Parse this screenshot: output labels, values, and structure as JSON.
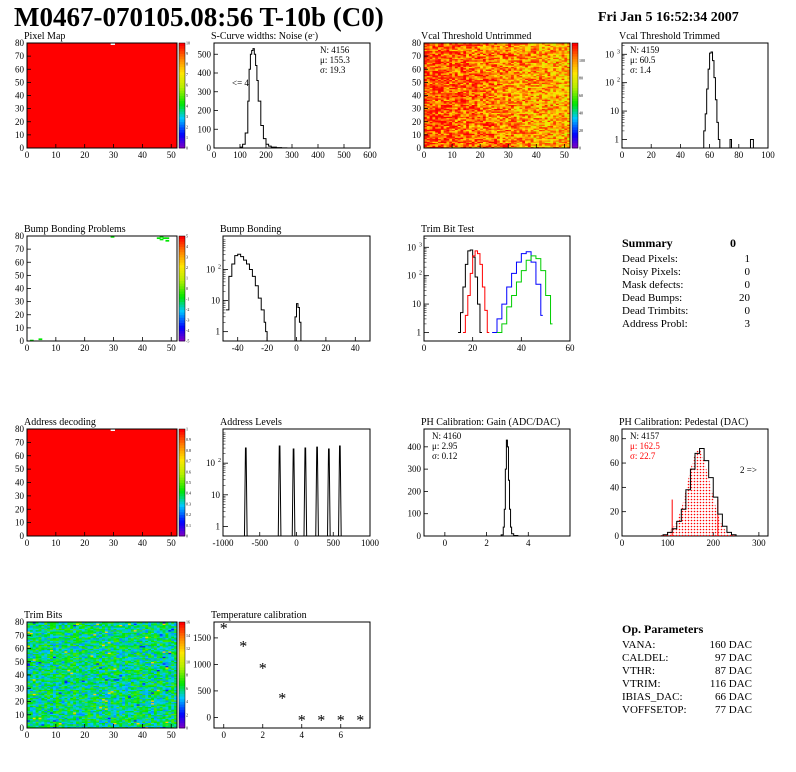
{
  "header": {
    "title": "M0467-070105.08:56 T-10b (C0)",
    "date": "Fri Jan  5 16:52:34 2007"
  },
  "colors": {
    "red": "#ff0000",
    "green": "#00cc00",
    "blue": "#0000ff",
    "black": "#000000"
  },
  "chart_data": [
    {
      "id": "pixel-map",
      "type": "heatmap",
      "title": "Pixel Map",
      "xlim": [
        0,
        52
      ],
      "ylim": [
        0,
        80
      ],
      "xticks": [
        0,
        10,
        20,
        30,
        40,
        50
      ],
      "yticks": [
        0,
        10,
        20,
        30,
        40,
        50,
        60,
        70,
        80
      ],
      "zlim": [
        0,
        10
      ],
      "zticks": [
        0,
        1,
        2,
        3,
        4,
        5,
        6,
        7,
        8,
        9,
        10
      ],
      "fill": "uniform-max",
      "dead_pixels": [
        [
          29,
          79
        ]
      ]
    },
    {
      "id": "scurve-widths",
      "type": "line",
      "title": "S-Curve widths: Noise (e",
      "title_sup": "-",
      "title_end": ")",
      "xlim": [
        0,
        600
      ],
      "ylim": [
        0,
        560
      ],
      "xticks": [
        0,
        100,
        200,
        300,
        400,
        500,
        600
      ],
      "yticks": [
        0,
        100,
        200,
        300,
        400,
        500
      ],
      "stats": {
        "N": "4156",
        "mu": "155.3",
        "sigma": "19.3"
      },
      "annotation": "<= 4",
      "x": [
        80,
        100,
        110,
        120,
        130,
        135,
        140,
        145,
        150,
        155,
        160,
        165,
        170,
        180,
        190,
        200,
        210,
        220,
        240,
        260,
        280,
        290
      ],
      "values": [
        0,
        5,
        20,
        80,
        250,
        420,
        500,
        520,
        530,
        500,
        440,
        360,
        250,
        120,
        50,
        20,
        10,
        5,
        2,
        1,
        0,
        0
      ]
    },
    {
      "id": "vcal-untrimmed",
      "type": "heatmap",
      "title": "Vcal Threshold Untrimmed",
      "xlim": [
        0,
        52
      ],
      "ylim": [
        0,
        80
      ],
      "xticks": [
        0,
        10,
        20,
        30,
        40,
        50
      ],
      "yticks": [
        0,
        10,
        20,
        30,
        40,
        50,
        60,
        70,
        80
      ],
      "zlim": [
        0,
        120
      ],
      "zticks": [
        0,
        20,
        40,
        60,
        80,
        100
      ],
      "fill": "noisy-orange"
    },
    {
      "id": "vcal-trimmed",
      "type": "line",
      "title": "Vcal Threshold Trimmed",
      "scale": "log",
      "xlim": [
        0,
        100
      ],
      "ylim": [
        0.5,
        2500
      ],
      "xticks": [
        0,
        20,
        40,
        60,
        80,
        100
      ],
      "ylog_ticks": [
        1,
        10,
        100,
        1000
      ],
      "stats": {
        "N": "4159",
        "mu": "60.5",
        "sigma": "1.4"
      },
      "x": [
        55,
        56,
        57,
        58,
        59,
        60,
        61,
        62,
        63,
        64,
        65,
        66,
        67,
        74,
        75,
        88,
        89,
        90
      ],
      "values": [
        0.5,
        2,
        8,
        60,
        300,
        1100,
        1200,
        600,
        150,
        25,
        4,
        1,
        0.5,
        1,
        0.5,
        1,
        1,
        0.5
      ]
    },
    {
      "id": "bump-problems",
      "type": "heatmap",
      "title": "Bump Bonding Problems",
      "xlim": [
        0,
        52
      ],
      "ylim": [
        0,
        80
      ],
      "xticks": [
        0,
        10,
        20,
        30,
        40,
        50
      ],
      "yticks": [
        0,
        10,
        20,
        30,
        40,
        50,
        60,
        70,
        80
      ],
      "zlim": [
        -5,
        5
      ],
      "zticks": [
        -5,
        -4,
        -3,
        -2,
        -1,
        0,
        1,
        2,
        3,
        4,
        5
      ],
      "fill": "sparse",
      "points": [
        [
          45,
          78
        ],
        [
          46,
          77
        ],
        [
          47,
          78
        ],
        [
          48,
          76
        ],
        [
          48,
          78
        ],
        [
          46,
          79
        ],
        [
          29,
          79
        ],
        [
          1,
          0
        ],
        [
          4,
          1
        ]
      ]
    },
    {
      "id": "bump-bonding",
      "type": "line",
      "title": "Bump Bonding",
      "scale": "log",
      "xlim": [
        -50,
        50
      ],
      "ylim": [
        0.5,
        1200
      ],
      "xticks": [
        -40,
        -20,
        0,
        20,
        40
      ],
      "ylog_ticks": [
        1,
        10,
        100
      ],
      "x": [
        -48,
        -46,
        -44,
        -42,
        -40,
        -38,
        -36,
        -34,
        -32,
        -30,
        -28,
        -26,
        -24,
        -22,
        -21,
        -20,
        -2,
        -1,
        0,
        1,
        2,
        3
      ],
      "values": [
        5,
        60,
        150,
        280,
        310,
        260,
        200,
        150,
        100,
        60,
        30,
        12,
        5,
        2,
        1,
        0.5,
        0.5,
        3,
        8,
        6,
        2,
        0.5
      ]
    },
    {
      "id": "trim-bit-test",
      "type": "line",
      "title": "Trim Bit Test",
      "scale": "log",
      "xlim": [
        0,
        60
      ],
      "ylim": [
        0.5,
        2500
      ],
      "xticks": [
        0,
        20,
        40,
        60
      ],
      "ylog_ticks": [
        1,
        10,
        100,
        1000
      ],
      "series": [
        {
          "color": "black",
          "x": [
            14,
            15,
            16,
            17,
            18,
            19,
            20,
            21,
            22,
            23
          ],
          "values": [
            1,
            5,
            40,
            250,
            750,
            800,
            450,
            90,
            10,
            1
          ]
        },
        {
          "color": "red",
          "x": [
            16,
            17,
            18,
            19,
            20,
            21,
            22,
            23,
            24,
            25,
            26
          ],
          "values": [
            1,
            4,
            20,
            120,
            500,
            750,
            600,
            250,
            40,
            6,
            1
          ]
        },
        {
          "color": "blue",
          "x": [
            28,
            30,
            32,
            34,
            36,
            38,
            40,
            42,
            44,
            46,
            48
          ],
          "values": [
            1,
            3,
            10,
            40,
            120,
            300,
            600,
            700,
            300,
            50,
            4
          ]
        },
        {
          "color": "green",
          "x": [
            30,
            32,
            34,
            36,
            38,
            40,
            42,
            44,
            46,
            48,
            50,
            52
          ],
          "values": [
            1,
            2,
            8,
            20,
            60,
            150,
            350,
            500,
            400,
            150,
            20,
            2
          ]
        }
      ]
    },
    {
      "id": "address-decoding",
      "type": "heatmap",
      "title": "Address decoding",
      "xlim": [
        0,
        52
      ],
      "ylim": [
        0,
        80
      ],
      "xticks": [
        0,
        10,
        20,
        30,
        40,
        50
      ],
      "yticks": [
        0,
        10,
        20,
        30,
        40,
        50,
        60,
        70,
        80
      ],
      "zlim": [
        0,
        1
      ],
      "zticks": [
        0,
        0.1,
        0.2,
        0.3,
        0.4,
        0.5,
        0.6,
        0.7,
        0.8,
        0.9,
        1
      ],
      "fill": "uniform-max",
      "dead_pixels": [
        [
          29,
          79
        ]
      ]
    },
    {
      "id": "address-levels",
      "type": "line",
      "title": "Address Levels",
      "scale": "log",
      "xlim": [
        -1000,
        1000
      ],
      "ylim": [
        0.5,
        1200
      ],
      "xticks": [
        -1000,
        -500,
        0,
        500,
        1000
      ],
      "ylog_ticks": [
        1,
        10,
        100
      ],
      "peaks": [
        -690,
        -230,
        -40,
        120,
        280,
        440,
        590
      ],
      "peak_values": [
        300,
        350,
        280,
        300,
        320,
        280,
        350
      ]
    },
    {
      "id": "ph-gain",
      "type": "line",
      "title": "PH Calibration: Gain (ADC/DAC)",
      "xlim": [
        -1,
        6
      ],
      "ylim": [
        0,
        480
      ],
      "xticks": [
        0,
        2,
        4
      ],
      "yticks": [
        0,
        100,
        200,
        300,
        400
      ],
      "stats": {
        "N": "4160",
        "mu": "2.95",
        "sigma": "0.12"
      },
      "x": [
        2.5,
        2.7,
        2.8,
        2.85,
        2.9,
        2.95,
        3.0,
        3.05,
        3.1,
        3.15,
        3.2,
        3.3,
        3.5
      ],
      "values": [
        0,
        5,
        40,
        120,
        300,
        430,
        400,
        250,
        120,
        40,
        10,
        2,
        0
      ]
    },
    {
      "id": "ph-pedestal",
      "type": "line",
      "title": "PH Calibration: Pedestal (DAC)",
      "xlim": [
        0,
        320
      ],
      "ylim": [
        0,
        88
      ],
      "xticks": [
        0,
        100,
        200,
        300
      ],
      "yticks": [
        0,
        20,
        40,
        60,
        80
      ],
      "stats": {
        "N": "4157",
        "mu": "162.5",
        "sigma": "22.7"
      },
      "annotation": "2 =>",
      "x": [
        80,
        90,
        100,
        110,
        120,
        130,
        140,
        150,
        160,
        170,
        180,
        190,
        200,
        210,
        220,
        230,
        240,
        250
      ],
      "values": [
        0,
        1,
        3,
        6,
        12,
        22,
        38,
        55,
        68,
        72,
        62,
        48,
        32,
        18,
        8,
        3,
        1,
        0
      ]
    },
    {
      "id": "trim-bits",
      "type": "heatmap",
      "title": "Trim Bits",
      "xlim": [
        0,
        52
      ],
      "ylim": [
        0,
        80
      ],
      "xticks": [
        0,
        10,
        20,
        30,
        40,
        50
      ],
      "yticks": [
        0,
        10,
        20,
        30,
        40,
        50,
        60,
        70,
        80
      ],
      "zlim": [
        0,
        16
      ],
      "zticks": [
        0,
        2,
        4,
        6,
        8,
        10,
        12,
        14,
        16
      ],
      "fill": "noisy-green"
    },
    {
      "id": "temperature-calibration",
      "type": "scatter",
      "title": "Temperature calibration",
      "xlim": [
        -0.5,
        7.5
      ],
      "ylim": [
        -200,
        1800
      ],
      "xticks": [
        0,
        2,
        4,
        6
      ],
      "yticks": [
        0,
        500,
        1000,
        1500
      ],
      "x": [
        0,
        1,
        2,
        3,
        4,
        5,
        6,
        7
      ],
      "values": [
        1680,
        1340,
        920,
        360,
        -60,
        -60,
        -60,
        -60
      ]
    }
  ],
  "summary": {
    "title": "Summary",
    "total": "0",
    "rows": [
      {
        "label": "Dead Pixels:",
        "value": "1"
      },
      {
        "label": "Noisy Pixels:",
        "value": "0"
      },
      {
        "label": "Mask defects:",
        "value": "0"
      },
      {
        "label": "Dead Bumps:",
        "value": "20"
      },
      {
        "label": "Dead Trimbits:",
        "value": "0"
      },
      {
        "label": "Address Probl:",
        "value": "3"
      }
    ]
  },
  "parameters": {
    "title": "Op. Parameters",
    "rows": [
      {
        "label": "VANA:",
        "value": "160 DAC"
      },
      {
        "label": "CALDEL:",
        "value": "97 DAC"
      },
      {
        "label": "VTHR:",
        "value": "87 DAC"
      },
      {
        "label": "VTRIM:",
        "value": "116 DAC"
      },
      {
        "label": "IBIAS_DAC:",
        "value": "66 DAC"
      },
      {
        "label": "VOFFSETOP:",
        "value": "77 DAC"
      }
    ]
  }
}
